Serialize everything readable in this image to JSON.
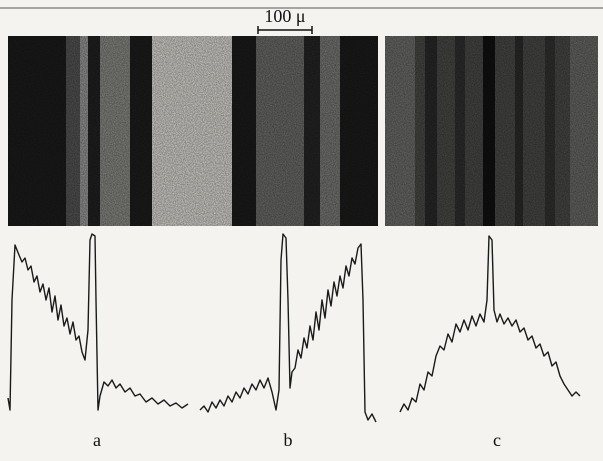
{
  "scale_bar": {
    "label": "100 μ"
  },
  "panels": [
    {
      "label": "a"
    },
    {
      "label": "b"
    },
    {
      "label": "c"
    }
  ]
}
